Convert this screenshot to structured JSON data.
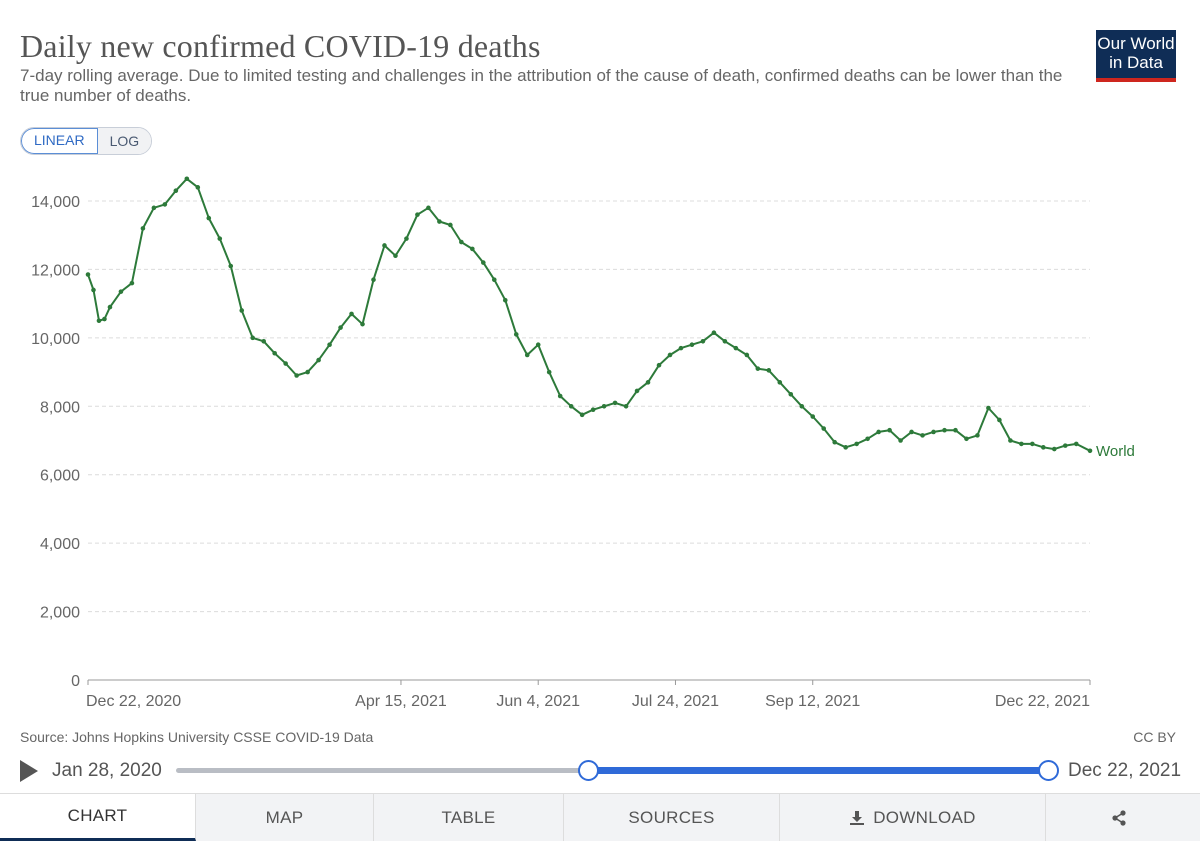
{
  "header": {
    "title": "Daily new confirmed COVID-19 deaths",
    "subtitle": "7-day rolling average. Due to limited testing and challenges in the attribution of the cause of death, confirmed deaths can be lower than the true number of deaths.",
    "logo_line1": "Our World",
    "logo_line2": "in Data"
  },
  "scale": {
    "linear_label": "LINEAR",
    "log_label": "LOG",
    "selected": "LINEAR"
  },
  "chart_data": {
    "type": "line",
    "title": "Daily new confirmed COVID-19 deaths",
    "xlabel": "",
    "ylabel": "",
    "ylim": [
      0,
      14000
    ],
    "y_ticks": [
      0,
      2000,
      4000,
      6000,
      8000,
      10000,
      12000,
      14000
    ],
    "y_tick_labels": [
      "0",
      "2,000",
      "4,000",
      "6,000",
      "8,000",
      "10,000",
      "12,000",
      "14,000"
    ],
    "x_range_days": [
      0,
      365
    ],
    "x_ticks": [
      {
        "day": 0,
        "label": "Dec 22, 2020"
      },
      {
        "day": 114,
        "label": "Apr 15, 2021"
      },
      {
        "day": 164,
        "label": "Jun 4, 2021"
      },
      {
        "day": 214,
        "label": "Jul 24, 2021"
      },
      {
        "day": 264,
        "label": "Sep 12, 2021"
      },
      {
        "day": 365,
        "label": "Dec 22, 2021"
      }
    ],
    "grid": true,
    "series": [
      {
        "name": "World",
        "color": "#2d7a3a",
        "x_days": [
          0,
          2,
          4,
          6,
          8,
          12,
          16,
          20,
          24,
          28,
          32,
          36,
          40,
          44,
          48,
          52,
          56,
          60,
          64,
          68,
          72,
          76,
          80,
          84,
          88,
          92,
          96,
          100,
          104,
          108,
          112,
          116,
          120,
          124,
          128,
          132,
          136,
          140,
          144,
          148,
          152,
          156,
          160,
          164,
          168,
          172,
          176,
          180,
          184,
          188,
          192,
          196,
          200,
          204,
          208,
          212,
          216,
          220,
          224,
          228,
          232,
          236,
          240,
          244,
          248,
          252,
          256,
          260,
          264,
          268,
          272,
          276,
          280,
          284,
          288,
          292,
          296,
          300,
          304,
          308,
          312,
          316,
          320,
          324,
          328,
          332,
          336,
          340,
          344,
          348,
          352,
          356,
          360,
          365
        ],
        "values": [
          11850,
          11400,
          10500,
          10550,
          10900,
          11350,
          11600,
          13200,
          13800,
          13900,
          14300,
          14650,
          14400,
          13500,
          12900,
          12100,
          10800,
          10000,
          9900,
          9550,
          9250,
          8900,
          9000,
          9350,
          9800,
          10300,
          10700,
          10400,
          11700,
          12700,
          12400,
          12900,
          13600,
          13800,
          13400,
          13300,
          12800,
          12600,
          12200,
          11700,
          11100,
          10100,
          9500,
          9800,
          9000,
          8300,
          8000,
          7750,
          7900,
          8000,
          8100,
          8000,
          8450,
          8700,
          9200,
          9500,
          9700,
          9800,
          9900,
          10150,
          9900,
          9700,
          9500,
          9100,
          9050,
          8700,
          8350,
          8000,
          7700,
          7350,
          6950,
          6800,
          6900,
          7050,
          7250,
          7300,
          7000,
          7250,
          7150,
          7250,
          7300,
          7300,
          7050,
          7150,
          7950,
          7600,
          7000,
          6900,
          6900,
          6800,
          6750,
          6850,
          6900,
          6700
        ]
      }
    ]
  },
  "footer": {
    "source": "Source: Johns Hopkins University CSSE COVID-19 Data",
    "license": "CC BY"
  },
  "timeline": {
    "start_label": "Jan 28, 2020",
    "end_label": "Dec 22, 2021",
    "selected_start_fraction": 0.473,
    "selected_end_fraction": 1.0
  },
  "tabs": {
    "chart": "CHART",
    "map": "MAP",
    "table": "TABLE",
    "sources": "SOURCES",
    "download": "DOWNLOAD",
    "active": "CHART"
  }
}
